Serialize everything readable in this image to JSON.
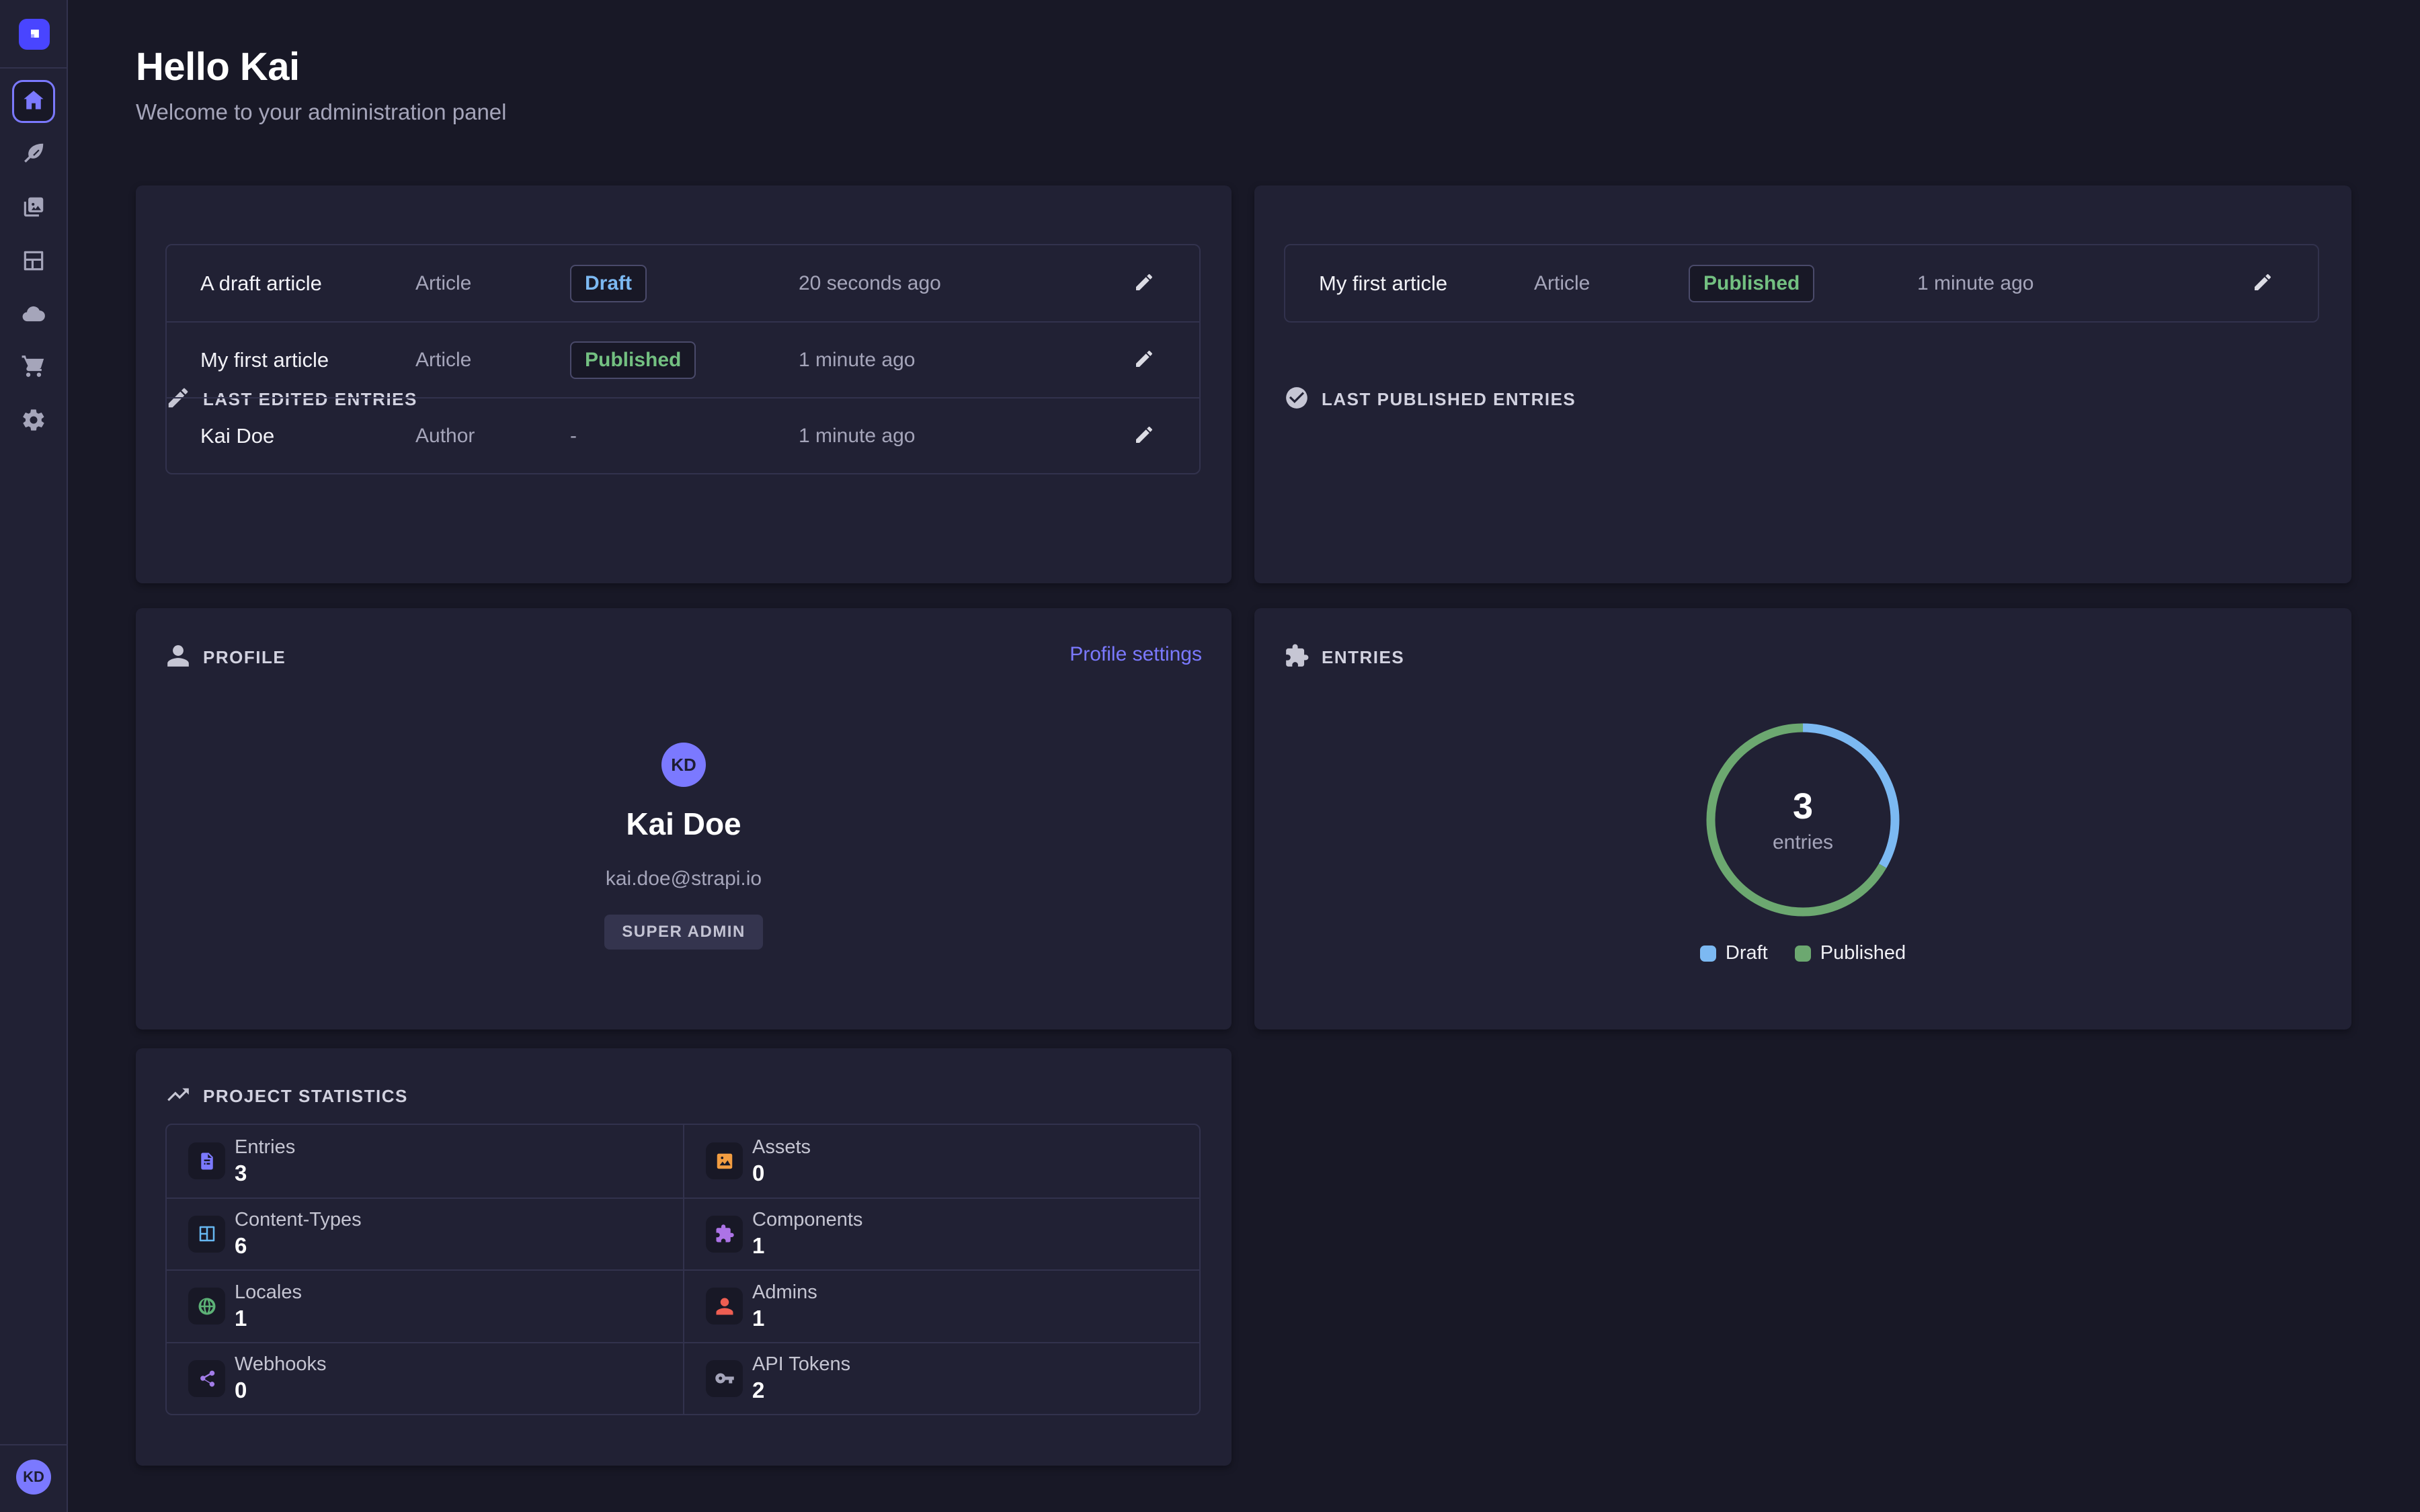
{
  "theme": {
    "background": "#181826",
    "surface": "#212134",
    "line": "#32324d",
    "accent": "#7b79ff",
    "brand": "#4945ff",
    "draft_color": "#7cb9f2",
    "published_color": "#73c081"
  },
  "sidebar": {
    "logo_icon": "strapi-logo-icon",
    "nav": [
      {
        "name": "home",
        "icon": "home-icon",
        "active": true
      },
      {
        "name": "content-manager",
        "icon": "pen-icon",
        "active": false
      },
      {
        "name": "media-library",
        "icon": "images-icon",
        "active": false
      },
      {
        "name": "content-type-builder",
        "icon": "layout-icon",
        "active": false
      },
      {
        "name": "deploy",
        "icon": "cloud-icon",
        "active": false
      },
      {
        "name": "marketplace",
        "icon": "cart-icon",
        "active": false
      },
      {
        "name": "settings",
        "icon": "gear-icon",
        "active": false
      }
    ],
    "user_initials": "KD"
  },
  "header": {
    "title": "Hello Kai",
    "subtitle": "Welcome to your administration panel"
  },
  "last_edited": {
    "title": "LAST EDITED ENTRIES",
    "icon": "pencil-icon",
    "rows": [
      {
        "name": "A draft article",
        "kind": "Article",
        "status": "Draft",
        "time": "20 seconds ago"
      },
      {
        "name": "My first article",
        "kind": "Article",
        "status": "Published",
        "time": "1 minute ago"
      },
      {
        "name": "Kai Doe",
        "kind": "Author",
        "status": "-",
        "time": "1 minute ago"
      }
    ]
  },
  "last_published": {
    "title": "LAST PUBLISHED ENTRIES",
    "icon": "check-circle-icon",
    "rows": [
      {
        "name": "My first article",
        "kind": "Article",
        "status": "Published",
        "time": "1 minute ago"
      }
    ]
  },
  "profile": {
    "title": "PROFILE",
    "icon": "user-icon",
    "settings_link": "Profile settings",
    "initials": "KD",
    "name": "Kai Doe",
    "email": "kai.doe@strapi.io",
    "role": "SUPER ADMIN"
  },
  "chart_data": {
    "type": "pie",
    "title": "ENTRIES",
    "center_value": "3",
    "center_label": "entries",
    "slices": [
      {
        "label": "Draft",
        "value": 1,
        "color": "#7cb9f2"
      },
      {
        "label": "Published",
        "value": 2,
        "color": "#6ca870"
      }
    ],
    "legend_position": "bottom",
    "donut_stroke_width": 13
  },
  "project_statistics": {
    "title": "PROJECT STATISTICS",
    "icon": "trend-up-icon",
    "items": [
      {
        "label": "Entries",
        "value": "3",
        "icon": "document-icon",
        "color": "#7b79ff"
      },
      {
        "label": "Assets",
        "value": "0",
        "icon": "image-icon",
        "color": "#f29d41"
      },
      {
        "label": "Content-Types",
        "value": "6",
        "icon": "layout-grid-icon",
        "color": "#66b7f1"
      },
      {
        "label": "Components",
        "value": "1",
        "icon": "puzzle-icon",
        "color": "#ac73e6"
      },
      {
        "label": "Locales",
        "value": "1",
        "icon": "globe-icon",
        "color": "#5cb176"
      },
      {
        "label": "Admins",
        "value": "1",
        "icon": "person-icon",
        "color": "#ee5e52"
      },
      {
        "label": "Webhooks",
        "value": "0",
        "icon": "share-nodes-icon",
        "color": "#a27ce8"
      },
      {
        "label": "API Tokens",
        "value": "2",
        "icon": "key-icon",
        "color": "#a5a5ba"
      }
    ]
  }
}
